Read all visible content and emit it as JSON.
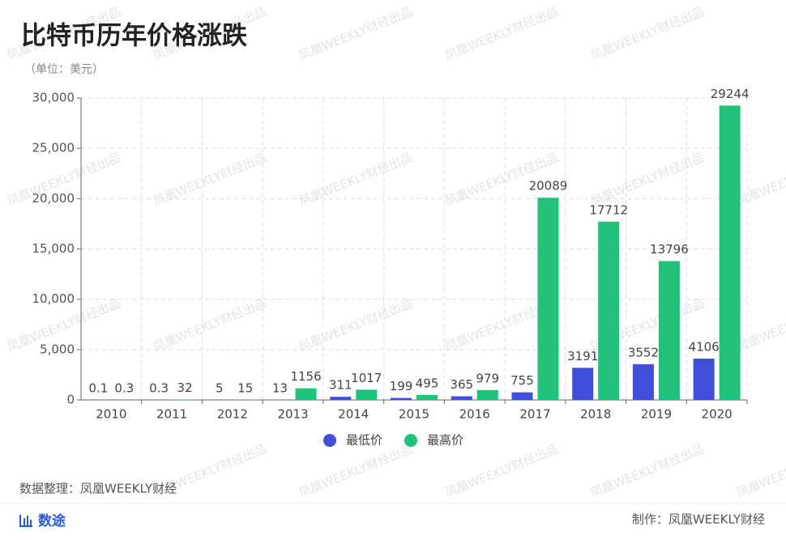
{
  "chart_data": {
    "type": "bar",
    "title": "比特币历年价格涨跌",
    "subtitle": "（单位：美元）",
    "categories": [
      "2010",
      "2011",
      "2012",
      "2013",
      "2014",
      "2015",
      "2016",
      "2017",
      "2018",
      "2019",
      "2020"
    ],
    "series": [
      {
        "name": "最低价",
        "color": "#3f4fd7",
        "values": [
          0.1,
          0.3,
          5,
          13,
          311,
          199,
          365,
          755,
          3191,
          3552,
          4106
        ]
      },
      {
        "name": "最高价",
        "color": "#21c17c",
        "values": [
          0.3,
          32,
          15,
          1156,
          1017,
          495,
          979,
          20089,
          17712,
          13796,
          29244
        ]
      }
    ],
    "ylim": [
      0,
      30000
    ],
    "yticks": [
      0,
      {
        "value": 5000,
        "label": "5,000"
      },
      {
        "value": 10000,
        "label": "10,000"
      },
      {
        "value": 15000,
        "label": "15,000"
      },
      {
        "value": 20000,
        "label": "20,000"
      },
      {
        "value": 25000,
        "label": "25,000"
      },
      {
        "value": 30000,
        "label": "30,000"
      }
    ],
    "grid": true,
    "legend": "bottom"
  },
  "source": "数据整理：凤凰WEEKLY财经",
  "brand": "数途",
  "credit": "制作：凤凰WEEKLY财经",
  "watermark": "凤凰WEEKLY财经出品"
}
